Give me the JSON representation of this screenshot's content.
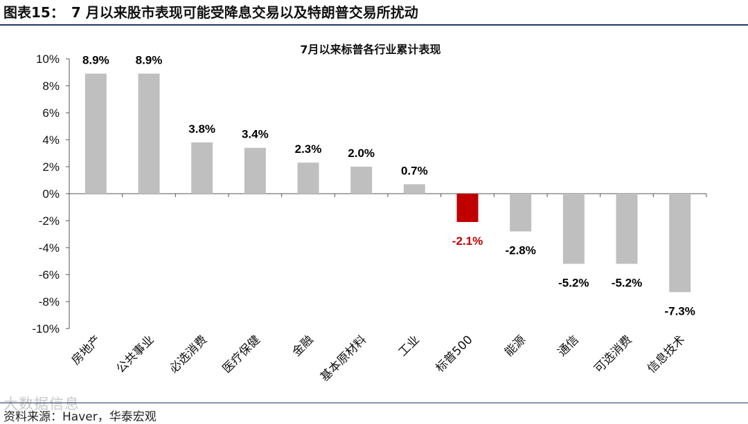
{
  "figure": {
    "label": "图表15：",
    "title": "7 月以来股市表现可能受降息交易以及特朗普交易所扰动",
    "source": "资料来源：Haver，华泰宏观",
    "watermark": "大数据信息"
  },
  "colors": {
    "bar": "#bfbfbf",
    "highlight": "#c00000",
    "label_default": "#000000",
    "rule": "#1f3864"
  },
  "chart_data": {
    "type": "bar",
    "title": "7月以来标普各行业累计表现",
    "categories": [
      "房地产",
      "公共事业",
      "必选消费",
      "医疗保健",
      "金融",
      "基本原材料",
      "工业",
      "标普500",
      "能源",
      "通信",
      "可选消费",
      "信息技术"
    ],
    "values": [
      8.9,
      8.9,
      3.8,
      3.4,
      2.3,
      2.0,
      0.7,
      -2.1,
      -2.8,
      -5.2,
      -5.2,
      -7.3
    ],
    "value_labels": [
      "8.9%",
      "8.9%",
      "3.8%",
      "3.4%",
      "2.3%",
      "2.0%",
      "0.7%",
      "-2.1%",
      "-2.8%",
      "-5.2%",
      "-5.2%",
      "-7.3%"
    ],
    "highlight_category": "标普500",
    "yticks": [
      "10%",
      "8%",
      "6%",
      "4%",
      "2%",
      "0%",
      "-2%",
      "-4%",
      "-6%",
      "-8%",
      "-10%"
    ],
    "ylim": [
      -10,
      10
    ],
    "xlabel": "",
    "ylabel": "",
    "grid": false,
    "legend": "none"
  }
}
